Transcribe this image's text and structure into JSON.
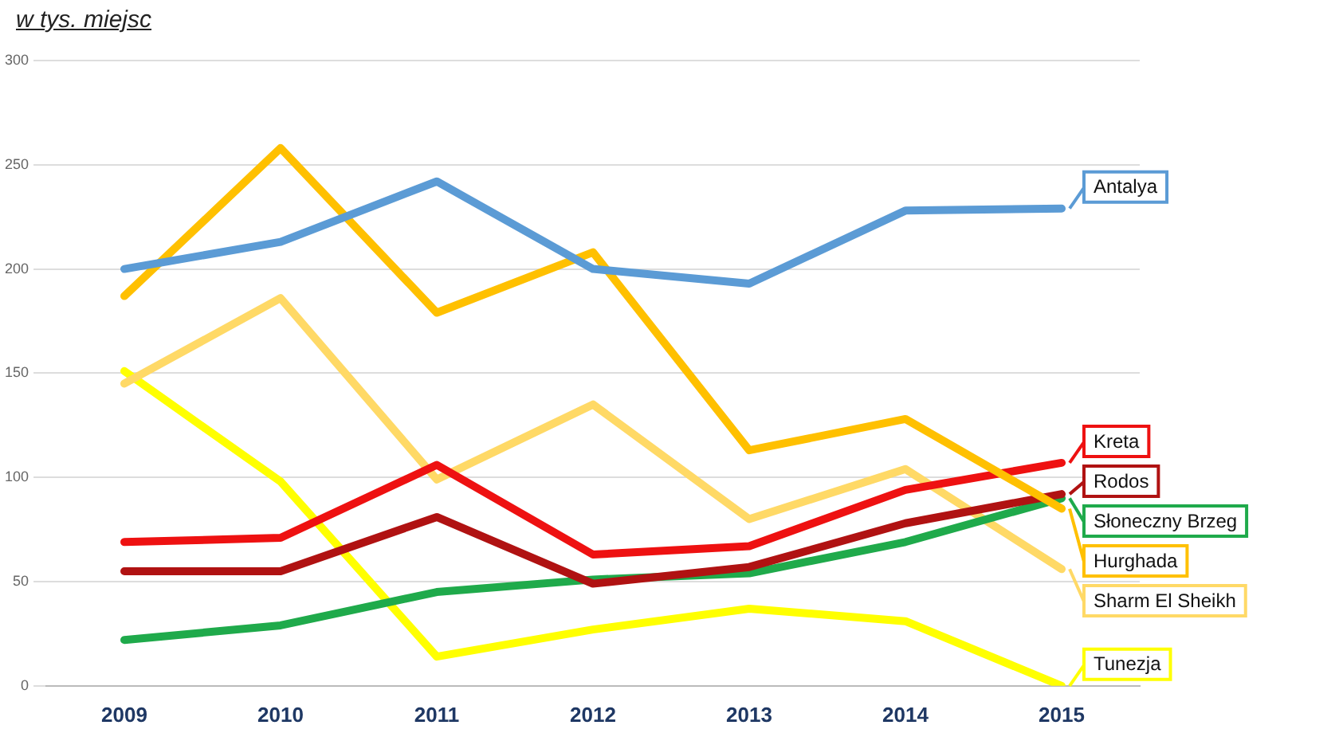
{
  "chart_data": {
    "type": "line",
    "ylabel": "w tys. miejsc",
    "categories": [
      "2009",
      "2010",
      "2011",
      "2012",
      "2013",
      "2014",
      "2015"
    ],
    "ylim": [
      0,
      300
    ],
    "yticks": [
      0,
      50,
      100,
      150,
      200,
      250,
      300
    ],
    "grid": "y",
    "legend": "right",
    "marker": "none",
    "series": [
      {
        "name": "Antalya",
        "color": "#5b9bd5",
        "values": [
          200,
          213,
          242,
          200,
          193,
          228,
          229
        ]
      },
      {
        "name": "Hurghada",
        "color": "#ffc000",
        "values": [
          187,
          258,
          179,
          208,
          113,
          128,
          85
        ]
      },
      {
        "name": "Kreta",
        "color": "#ee1111",
        "values": [
          69,
          71,
          106,
          63,
          67,
          94,
          107
        ]
      },
      {
        "name": "Rodos",
        "color": "#b01212",
        "values": [
          55,
          55,
          81,
          49,
          57,
          78,
          92
        ]
      },
      {
        "name": "Słoneczny Brzeg",
        "color": "#1faa4b",
        "values": [
          22,
          29,
          45,
          51,
          54,
          69,
          90
        ]
      },
      {
        "name": "Sharm El Sheikh",
        "color": "#ffd966",
        "values": [
          145,
          186,
          99,
          135,
          80,
          104,
          56
        ]
      },
      {
        "name": "Tunezja",
        "color": "#ffff00",
        "values": [
          151,
          98,
          14,
          27,
          37,
          31,
          0
        ]
      }
    ]
  }
}
